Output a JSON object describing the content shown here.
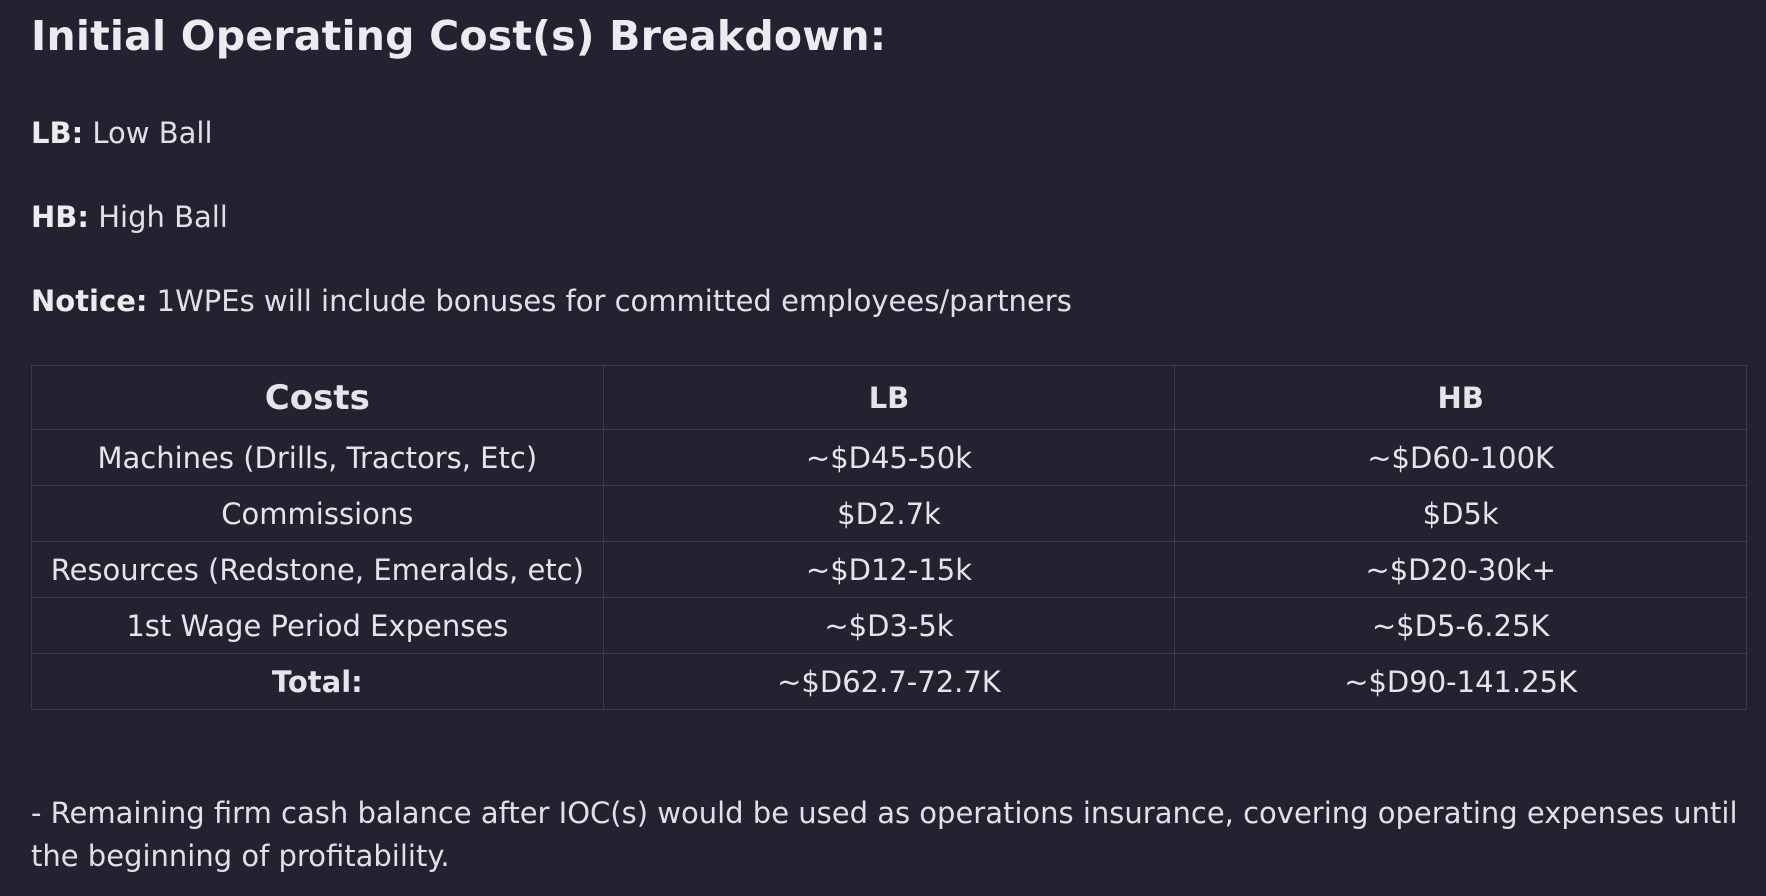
{
  "heading": "Initial Operating Cost(s) Breakdown:",
  "definitions": [
    {
      "term": "LB:",
      "text": " Low Ball"
    },
    {
      "term": "HB:",
      "text": " High Ball"
    },
    {
      "term": "Notice:",
      "text": " 1WPEs will include bonuses for committed employees/partners"
    }
  ],
  "table": {
    "headers": [
      "Costs",
      "LB",
      "HB"
    ],
    "rows": [
      [
        "Machines (Drills, Tractors, Etc)",
        "~$D45-50k",
        "~$D60-100K"
      ],
      [
        "Commissions",
        "$D2.7k",
        "$D5k"
      ],
      [
        "Resources (Redstone, Emeralds, etc)",
        "~$D12-15k",
        "~$D20-30k+"
      ],
      [
        "1st Wage Period Expenses",
        "~$D3-5k",
        "~$D5-6.25K"
      ],
      [
        "Total:",
        "~$D62.7-72.7K",
        "~$D90-141.25K"
      ]
    ]
  },
  "remark": "- Remaining firm cash balance after IOC(s) would be used as operations insurance, covering operating expenses until the beginning of profitability."
}
